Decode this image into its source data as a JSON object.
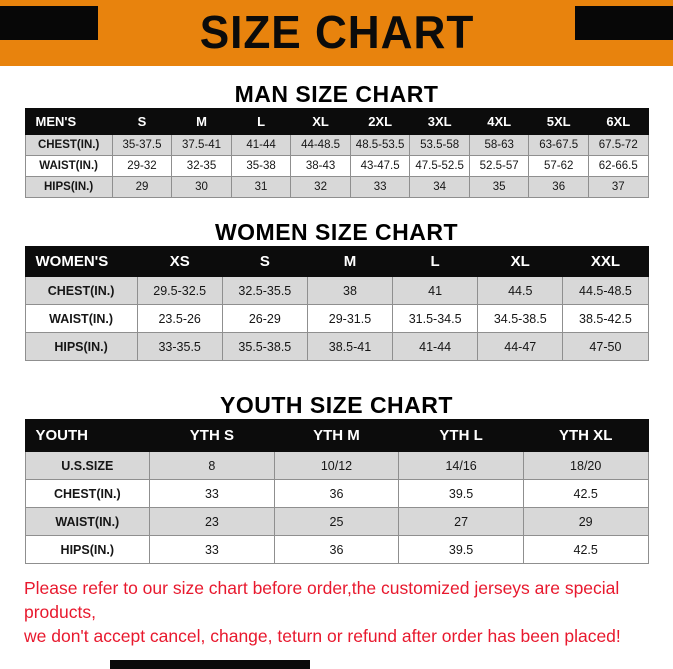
{
  "banner": {
    "title": "SIZE CHART"
  },
  "colors": {
    "banner_orange": "#E8830D",
    "header_black": "#0C0C0C",
    "row_gray": "#D8D8D8",
    "disclaimer_red": "#E8192E"
  },
  "sections": {
    "men": {
      "heading": "MAN SIZE CHART",
      "table": {
        "header": [
          "MEN'S",
          "S",
          "M",
          "L",
          "XL",
          "2XL",
          "3XL",
          "4XL",
          "5XL",
          "6XL"
        ],
        "rows": [
          [
            "CHEST(IN.)",
            "35-37.5",
            "37.5-41",
            "41-44",
            "44-48.5",
            "48.5-53.5",
            "53.5-58",
            "58-63",
            "63-67.5",
            "67.5-72"
          ],
          [
            "WAIST(IN.)",
            "29-32",
            "32-35",
            "35-38",
            "38-43",
            "43-47.5",
            "47.5-52.5",
            "52.5-57",
            "57-62",
            "62-66.5"
          ],
          [
            "HIPS(IN.)",
            "29",
            "30",
            "31",
            "32",
            "33",
            "34",
            "35",
            "36",
            "37"
          ]
        ]
      }
    },
    "women": {
      "heading": "WOMEN SIZE CHART",
      "table": {
        "header": [
          "WOMEN'S",
          "XS",
          "S",
          "M",
          "L",
          "XL",
          "XXL"
        ],
        "rows": [
          [
            "CHEST(IN.)",
            "29.5-32.5",
            "32.5-35.5",
            "38",
            "41",
            "44.5",
            "44.5-48.5"
          ],
          [
            "WAIST(IN.)",
            "23.5-26",
            "26-29",
            "29-31.5",
            "31.5-34.5",
            "34.5-38.5",
            "38.5-42.5"
          ],
          [
            "HIPS(IN.)",
            "33-35.5",
            "35.5-38.5",
            "38.5-41",
            "41-44",
            "44-47",
            "47-50"
          ]
        ]
      }
    },
    "youth": {
      "heading": "YOUTH SIZE CHART",
      "table": {
        "header": [
          "YOUTH",
          "YTH S",
          "YTH M",
          "YTH L",
          "YTH XL"
        ],
        "rows": [
          [
            "U.S.SIZE",
            "8",
            "10/12",
            "14/16",
            "18/20"
          ],
          [
            "CHEST(IN.)",
            "33",
            "36",
            "39.5",
            "42.5"
          ],
          [
            "WAIST(IN.)",
            "23",
            "25",
            "27",
            "29"
          ],
          [
            "HIPS(IN.)",
            "33",
            "36",
            "39.5",
            "42.5"
          ]
        ]
      }
    }
  },
  "disclaimer": {
    "line1": "Please refer to our size chart before order,the customized jerseys are special products,",
    "line2": "we don't accept cancel, change, teturn or refund after order has been placed!"
  }
}
